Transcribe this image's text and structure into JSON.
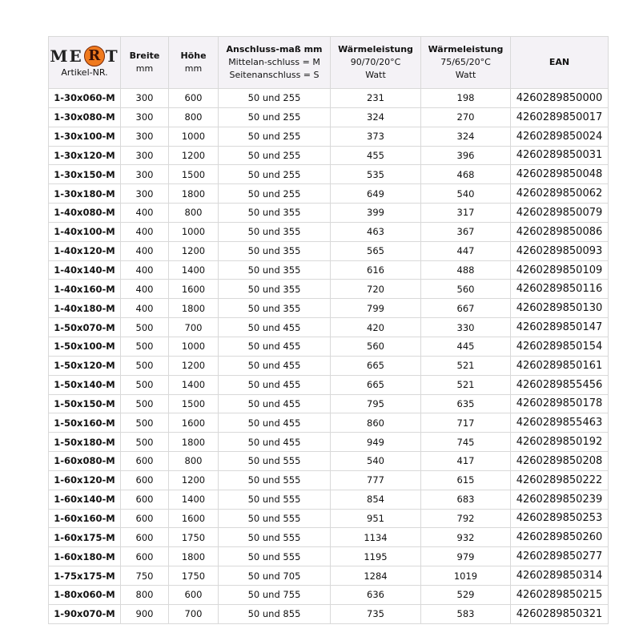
{
  "header": {
    "logo_text": "MERT",
    "logo": {
      "left": "ME",
      "circle": "R",
      "right": "T"
    },
    "accent_color": "#f07a1e",
    "artikel": "Artikel-NR.",
    "breite": {
      "title": "Breite",
      "unit": "mm"
    },
    "hoehe": {
      "title": "Höhe",
      "unit": "mm"
    },
    "anschluss": {
      "title": "Anschluss-maß mm",
      "line2": "Mittelan-schluss = M",
      "line3": "Seitenanschluss = S"
    },
    "w90": {
      "title": "Wärmeleistung",
      "line2": "90/70/20°C",
      "line3": "Watt"
    },
    "w75": {
      "title": "Wärmeleistung",
      "line2": "75/65/20°C",
      "line3": "Watt"
    },
    "ean": "EAN"
  },
  "rows": [
    [
      "1-30x060-M",
      "300",
      "600",
      "50 und 255",
      "231",
      "198",
      "4260289850000"
    ],
    [
      "1-30x080-M",
      "300",
      "800",
      "50 und 255",
      "324",
      "270",
      "4260289850017"
    ],
    [
      "1-30x100-M",
      "300",
      "1000",
      "50 und 255",
      "373",
      "324",
      "4260289850024"
    ],
    [
      "1-30x120-M",
      "300",
      "1200",
      "50 und 255",
      "455",
      "396",
      "4260289850031"
    ],
    [
      "1-30x150-M",
      "300",
      "1500",
      "50 und 255",
      "535",
      "468",
      "4260289850048"
    ],
    [
      "1-30x180-M",
      "300",
      "1800",
      "50 und 255",
      "649",
      "540",
      "4260289850062"
    ],
    [
      "1-40x080-M",
      "400",
      "800",
      "50 und 355",
      "399",
      "317",
      "4260289850079"
    ],
    [
      "1-40x100-M",
      "400",
      "1000",
      "50 und 355",
      "463",
      "367",
      "4260289850086"
    ],
    [
      "1-40x120-M",
      "400",
      "1200",
      "50 und 355",
      "565",
      "447",
      "4260289850093"
    ],
    [
      "1-40x140-M",
      "400",
      "1400",
      "50 und 355",
      "616",
      "488",
      "4260289850109"
    ],
    [
      "1-40x160-M",
      "400",
      "1600",
      "50 und 355",
      "720",
      "560",
      "4260289850116"
    ],
    [
      "1-40x180-M",
      "400",
      "1800",
      "50 und 355",
      "799",
      "667",
      "4260289850130"
    ],
    [
      "1-50x070-M",
      "500",
      "700",
      "50 und 455",
      "420",
      "330",
      "4260289850147"
    ],
    [
      "1-50x100-M",
      "500",
      "1000",
      "50 und 455",
      "560",
      "445",
      "4260289850154"
    ],
    [
      "1-50x120-M",
      "500",
      "1200",
      "50 und 455",
      "665",
      "521",
      "4260289850161"
    ],
    [
      "1-50x140-M",
      "500",
      "1400",
      "50 und 455",
      "665",
      "521",
      "4260289855456"
    ],
    [
      "1-50x150-M",
      "500",
      "1500",
      "50 und 455",
      "795",
      "635",
      "4260289850178"
    ],
    [
      "1-50x160-M",
      "500",
      "1600",
      "50 und 455",
      "860",
      "717",
      "4260289855463"
    ],
    [
      "1-50x180-M",
      "500",
      "1800",
      "50 und 455",
      "949",
      "745",
      "4260289850192"
    ],
    [
      "1-60x080-M",
      "600",
      "800",
      "50 und 555",
      "540",
      "417",
      "4260289850208"
    ],
    [
      "1-60x120-M",
      "600",
      "1200",
      "50 und 555",
      "777",
      "615",
      "4260289850222"
    ],
    [
      "1-60x140-M",
      "600",
      "1400",
      "50 und 555",
      "854",
      "683",
      "4260289850239"
    ],
    [
      "1-60x160-M",
      "600",
      "1600",
      "50 und 555",
      "951",
      "792",
      "4260289850253"
    ],
    [
      "1-60x175-M",
      "600",
      "1750",
      "50 und 555",
      "1134",
      "932",
      "4260289850260"
    ],
    [
      "1-60x180-M",
      "600",
      "1800",
      "50 und 555",
      "1195",
      "979",
      "4260289850277"
    ],
    [
      "1-75x175-M",
      "750",
      "1750",
      "50 und 705",
      "1284",
      "1019",
      "4260289850314"
    ],
    [
      "1-80x060-M",
      "800",
      "600",
      "50 und 755",
      "636",
      "529",
      "4260289850215"
    ],
    [
      "1-90x070-M",
      "900",
      "700",
      "50 und 855",
      "735",
      "583",
      "4260289850321"
    ]
  ]
}
